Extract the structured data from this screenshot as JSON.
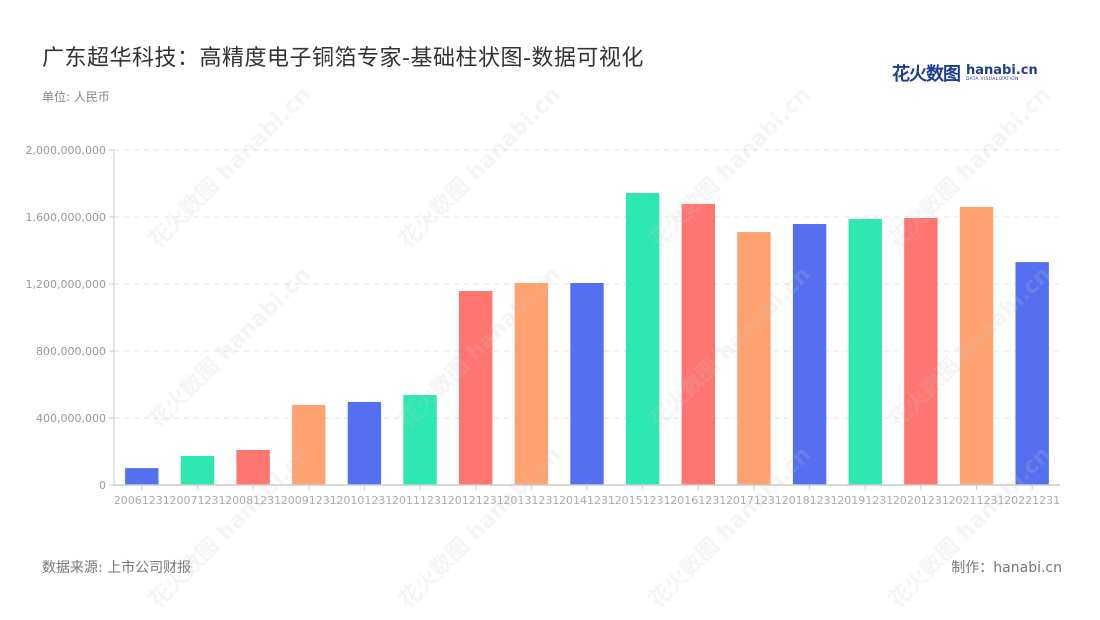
{
  "header": {
    "title": "广东超华科技：高精度电子铜箔专家-基础柱状图-数据可视化",
    "unit": "单位: 人民币"
  },
  "logo": {
    "cn": "花火数图",
    "en": "hanabi.cn",
    "sub": "DATA VISUALIZATION"
  },
  "footer": {
    "source": "数据来源: 上市公司财报",
    "credit": "制作：hanabi.cn"
  },
  "watermark": "花火数图 hanabi.cn",
  "colors": [
    "#5470f0",
    "#2de8b0",
    "#ff7570",
    "#ffa270"
  ],
  "chart_data": {
    "type": "bar",
    "title": "广东超华科技：高精度电子铜箔专家-基础柱状图-数据可视化",
    "xlabel": "",
    "ylabel": "单位: 人民币",
    "ylim": [
      0,
      2000000000
    ],
    "yticks": [
      0,
      400000000,
      800000000,
      1200000000,
      1600000000,
      2000000000
    ],
    "ytick_labels": [
      "0",
      "400,000,000",
      "800,000,000",
      "1,200,000,000",
      "1,600,000,000",
      "2,000,000,000"
    ],
    "grid": "horizontal dashed",
    "legend": "none",
    "categories": [
      "20061231",
      "20071231",
      "20081231",
      "20091231",
      "20101231",
      "20111231",
      "20121231",
      "20131231",
      "20141231",
      "20151231",
      "20161231",
      "20171231",
      "20181231",
      "20191231",
      "20201231",
      "20211231",
      "20221231"
    ],
    "values": [
      101000000,
      173000000,
      209000000,
      478000000,
      496000000,
      537000000,
      1158000000,
      1206000000,
      1206000000,
      1743000000,
      1678000000,
      1510000000,
      1558000000,
      1588000000,
      1594000000,
      1660000000,
      1331000000
    ],
    "bar_colors": [
      "#5470f0",
      "#2de8b0",
      "#ff7570",
      "#ffa270",
      "#5470f0",
      "#2de8b0",
      "#ff7570",
      "#ffa270",
      "#5470f0",
      "#2de8b0",
      "#ff7570",
      "#ffa270",
      "#5470f0",
      "#2de8b0",
      "#ff7570",
      "#ffa270",
      "#5470f0"
    ]
  }
}
